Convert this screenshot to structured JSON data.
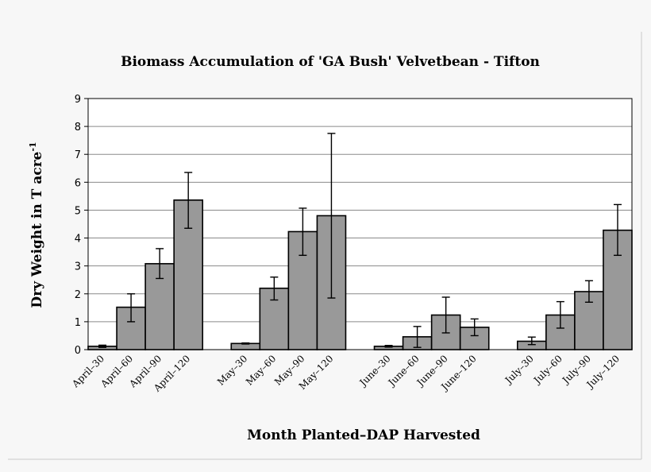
{
  "chart_data": {
    "type": "bar",
    "title": "Biomass Accumulation of 'GA Bush' Velvetbean - Tifton",
    "xlabel": "Month Planted–DAP Harvested",
    "ylabel": "Dry Weight in T acre",
    "ylabel_superscript": "-1",
    "ylim": [
      0,
      9
    ],
    "yticks": [
      "0",
      "1",
      "2",
      "3",
      "4",
      "5",
      "6",
      "7",
      "8",
      "9"
    ],
    "grid": true,
    "bar_color": "#999999",
    "groups": [
      {
        "name": "April",
        "categories": [
          "April–30",
          "April–60",
          "April–90",
          "April–120"
        ],
        "values": [
          0.12,
          1.52,
          3.08,
          5.36
        ],
        "err_low": [
          0.08,
          1.0,
          2.55,
          4.35
        ],
        "err_high": [
          0.16,
          2.0,
          3.62,
          6.35
        ]
      },
      {
        "name": "May",
        "categories": [
          "May–30",
          "May–60",
          "May–90",
          "May–120"
        ],
        "values": [
          0.22,
          2.2,
          4.23,
          4.8
        ],
        "err_low": [
          0.2,
          1.78,
          3.38,
          1.85
        ],
        "err_high": [
          0.24,
          2.6,
          5.07,
          7.75
        ]
      },
      {
        "name": "June",
        "categories": [
          "June–30",
          "June–60",
          "June–90",
          "June–120"
        ],
        "values": [
          0.12,
          0.46,
          1.24,
          0.8
        ],
        "err_low": [
          0.09,
          0.08,
          0.6,
          0.5
        ],
        "err_high": [
          0.15,
          0.83,
          1.88,
          1.1
        ]
      },
      {
        "name": "July",
        "categories": [
          "July–30",
          "July–60",
          "July–90",
          "July–120"
        ],
        "values": [
          0.3,
          1.24,
          2.08,
          4.28
        ],
        "err_low": [
          0.18,
          0.77,
          1.7,
          3.38
        ],
        "err_high": [
          0.45,
          1.72,
          2.47,
          5.2
        ]
      }
    ]
  }
}
